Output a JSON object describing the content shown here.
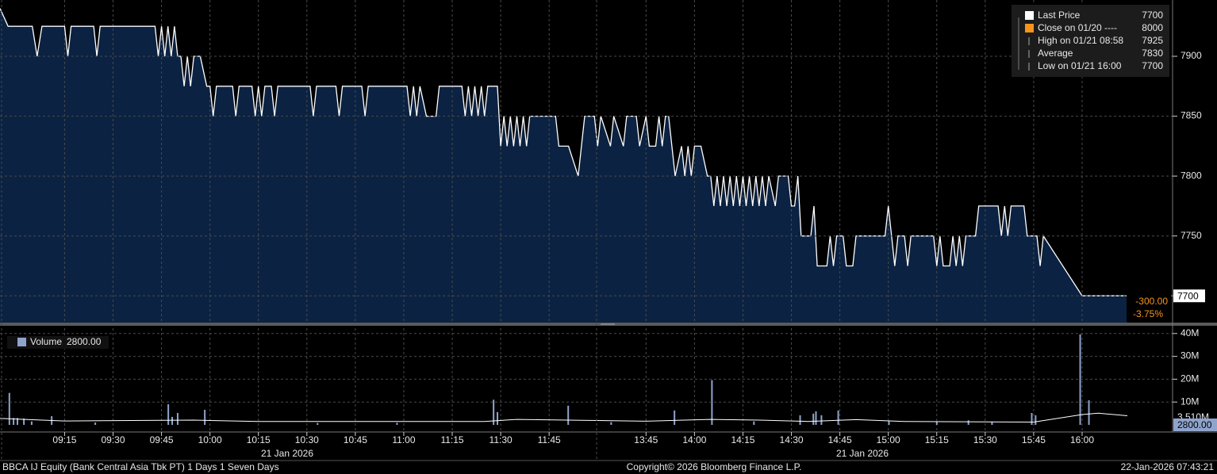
{
  "chart_data": [
    {
      "type": "area",
      "x": [
        0,
        2.5,
        10,
        11.5,
        13,
        20,
        21,
        22,
        29,
        30,
        31,
        48,
        49,
        50,
        51,
        52,
        53,
        54,
        55,
        56,
        57,
        58,
        59,
        60,
        62,
        64,
        65,
        66,
        67,
        72,
        73,
        74,
        78,
        79,
        80,
        81,
        82,
        84,
        85,
        86,
        96,
        97,
        98,
        104,
        105,
        106,
        112,
        113,
        114,
        126,
        127,
        128,
        129,
        130,
        132,
        135,
        136,
        143,
        144,
        145,
        146,
        147,
        148,
        149,
        150,
        151,
        154,
        155,
        156,
        157,
        158,
        159,
        160,
        161,
        162,
        163,
        164,
        172,
        173,
        176,
        179,
        181,
        184,
        185,
        186,
        189,
        190,
        193,
        194,
        197,
        198,
        200,
        201,
        203,
        204,
        205,
        206,
        207,
        208,
        209,
        211,
        212,
        213,
        214,
        215,
        217,
        219,
        220,
        221,
        222,
        223,
        224,
        225,
        226,
        227,
        228,
        229,
        230,
        231,
        232,
        233,
        234,
        235,
        236,
        237,
        238,
        240,
        241,
        244,
        245,
        246,
        247,
        248,
        251,
        252,
        253,
        256,
        257,
        258,
        259,
        261,
        262,
        264,
        265,
        274,
        275,
        276,
        277,
        278,
        280,
        281,
        282,
        289,
        290,
        291,
        292,
        294,
        295,
        296,
        297,
        298,
        299,
        302,
        303,
        309,
        310,
        311,
        312,
        313,
        317,
        318,
        321,
        322,
        323,
        335,
        349
      ],
      "series": [
        {
          "name": "Last Price",
          "color": "#ffffff",
          "fill": "#0b2242",
          "values": [
            7940,
            7925,
            7925,
            7900,
            7925,
            7925,
            7900,
            7925,
            7925,
            7900,
            7925,
            7925,
            7900,
            7925,
            7900,
            7925,
            7900,
            7925,
            7900,
            7900,
            7875,
            7900,
            7875,
            7900,
            7900,
            7875,
            7875,
            7850,
            7875,
            7875,
            7850,
            7875,
            7875,
            7850,
            7875,
            7850,
            7875,
            7875,
            7850,
            7875,
            7875,
            7850,
            7875,
            7875,
            7850,
            7875,
            7875,
            7850,
            7875,
            7875,
            7850,
            7875,
            7850,
            7875,
            7850,
            7850,
            7875,
            7875,
            7850,
            7875,
            7850,
            7875,
            7850,
            7875,
            7850,
            7875,
            7875,
            7825,
            7850,
            7825,
            7850,
            7825,
            7850,
            7825,
            7850,
            7825,
            7850,
            7850,
            7825,
            7825,
            7800,
            7850,
            7850,
            7825,
            7850,
            7825,
            7850,
            7825,
            7850,
            7850,
            7825,
            7850,
            7825,
            7825,
            7850,
            7825,
            7850,
            7850,
            7825,
            7800,
            7825,
            7800,
            7825,
            7800,
            7825,
            7825,
            7800,
            7800,
            7775,
            7800,
            7775,
            7800,
            7775,
            7800,
            7775,
            7800,
            7775,
            7800,
            7775,
            7800,
            7775,
            7800,
            7775,
            7800,
            7775,
            7800,
            7775,
            7800,
            7800,
            7775,
            7775,
            7800,
            7750,
            7750,
            7775,
            7725,
            7725,
            7750,
            7725,
            7750,
            7750,
            7725,
            7725,
            7750,
            7750,
            7775,
            7750,
            7725,
            7750,
            7750,
            7725,
            7750,
            7750,
            7725,
            7750,
            7725,
            7725,
            7750,
            7725,
            7750,
            7725,
            7750,
            7750,
            7775,
            7775,
            7750,
            7775,
            7750,
            7775,
            7775,
            7750,
            7750,
            7725,
            7750,
            7700,
            7700
          ]
        }
      ],
      "xlim": [
        0,
        363
      ],
      "xticks": [
        {
          "value": 20,
          "label": "09:15"
        },
        {
          "value": 35,
          "label": "09:30"
        },
        {
          "value": 50,
          "label": "09:45"
        },
        {
          "value": 65,
          "label": "10:00"
        },
        {
          "value": 80,
          "label": "10:15"
        },
        {
          "value": 95,
          "label": "10:30"
        },
        {
          "value": 110,
          "label": "10:45"
        },
        {
          "value": 125,
          "label": "11:00"
        },
        {
          "value": 140,
          "label": "11:15"
        },
        {
          "value": 155,
          "label": "11:30"
        },
        {
          "value": 170,
          "label": "11:45"
        },
        {
          "value": 200,
          "label": "13:45"
        },
        {
          "value": 215,
          "label": "14:00"
        },
        {
          "value": 230,
          "label": "14:15"
        },
        {
          "value": 245,
          "label": "14:30"
        },
        {
          "value": 260,
          "label": "14:45"
        },
        {
          "value": 275,
          "label": "15:00"
        },
        {
          "value": 290,
          "label": "15:15"
        },
        {
          "value": 305,
          "label": "15:30"
        },
        {
          "value": 320,
          "label": "15:45"
        },
        {
          "value": 335,
          "label": "16:00"
        }
      ],
      "ylim": [
        7677,
        7947
      ],
      "yticks": [
        7700,
        7750,
        7800,
        7850,
        7900
      ],
      "grid": true,
      "legend": [
        {
          "label": "Last Price",
          "value": 7700,
          "color": "#ffffff"
        },
        {
          "label": "Close on 01/20 ----",
          "value": 8000,
          "color": "#f7941d"
        },
        {
          "label": "High on 01/21 08:58",
          "value": 7925
        },
        {
          "label": "Average",
          "value": 7830
        },
        {
          "label": "Low on 01/21 16:00",
          "value": 7700
        }
      ],
      "change": {
        "value": -300,
        "label": "-300.00"
      },
      "change_pct": {
        "value": -3.75,
        "label": "-3.75%"
      }
    },
    {
      "type": "bar",
      "x": [
        2.9,
        4.2,
        5.4,
        7.4,
        9.8,
        16,
        29.5,
        52.1,
        53.3,
        55,
        63.4,
        98.3,
        122.9,
        152.8,
        154,
        175.9,
        189.2,
        208.8,
        220.4,
        233.4,
        247.7,
        251.8,
        252.6,
        254.3,
        259.5,
        275.2,
        290,
        299.8,
        307.1,
        319.4,
        320.6,
        334.4,
        337.1,
        348.4
      ],
      "xlim": [
        0,
        363
      ],
      "series": [
        {
          "name": "Volume",
          "color": "#8fa4cc",
          "values": [
            14000000,
            3000000,
            3000000,
            2800000,
            1500000,
            3800000,
            1000000,
            9000000,
            3500000,
            5200000,
            6600000,
            800000,
            900000,
            11000000,
            5600000,
            8400000,
            1200000,
            6300000,
            19600000,
            1500000,
            4200000,
            4900000,
            5900000,
            4200000,
            6300000,
            1800000,
            1500000,
            2000000,
            1400000,
            5200000,
            4200000,
            39600000,
            10800000,
            2800
          ]
        }
      ],
      "average": {
        "color": "#ffffff",
        "x": [
          0,
          20,
          60,
          80,
          150,
          160,
          180,
          200,
          220,
          235,
          250,
          265,
          280,
          320,
          335,
          340,
          349
        ],
        "values": [
          2800000,
          1700000,
          2100000,
          1500000,
          1500000,
          2400000,
          2000000,
          1600000,
          2400000,
          2100000,
          1500000,
          2300000,
          1500000,
          1200000,
          4500000,
          5100000,
          4000000
        ]
      },
      "ylim": [
        0,
        42000000
      ],
      "yticks": [
        {
          "value": 10000000,
          "label": "10M"
        },
        {
          "value": 20000000,
          "label": "20M"
        },
        {
          "value": 30000000,
          "label": "30M"
        },
        {
          "value": 40000000,
          "label": "40M"
        }
      ],
      "last_volume": {
        "value": 2800,
        "label": "2800.00"
      },
      "average_last": {
        "value": 3510000,
        "label": "3.510M"
      }
    }
  ],
  "date_labels": [
    "21 Jan 2026",
    "21 Jan 2026"
  ],
  "footer": {
    "security": "BBCA IJ Equity (Bank Central Asia Tbk PT) 1 Days 1 Seven Days",
    "copyright": "Copyright© 2026 Bloomberg Finance L.P.",
    "timestamp": "22-Jan-2026 07:43:21"
  }
}
